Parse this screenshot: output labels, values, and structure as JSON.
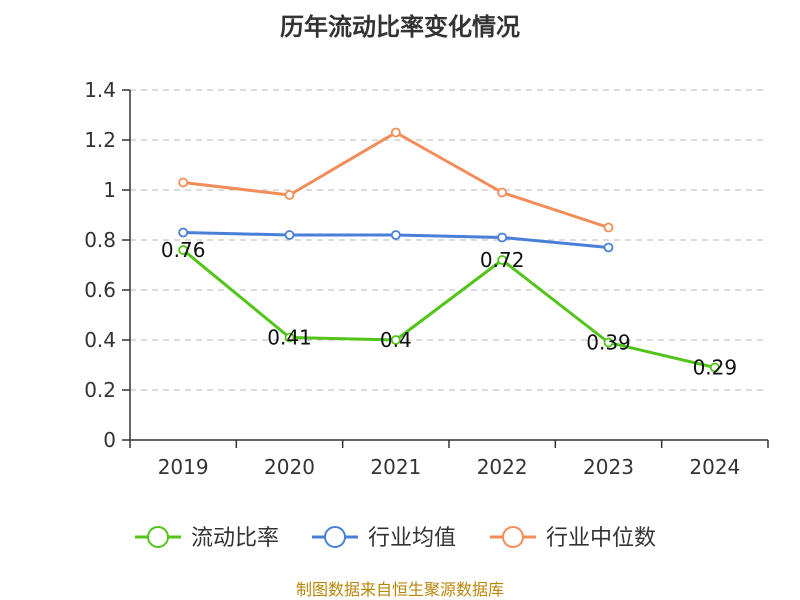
{
  "chart_data": {
    "type": "line",
    "title": "历年流动比率变化情况",
    "categories": [
      "2019",
      "2020",
      "2021",
      "2022",
      "2023",
      "2024"
    ],
    "ylim": [
      0,
      1.4
    ],
    "y_ticks": [
      0,
      0.2,
      0.4,
      0.6,
      0.8,
      1,
      1.2,
      1.4
    ],
    "y_tick_labels": [
      "0",
      "0.2",
      "0.4",
      "0.6",
      "0.8",
      "1",
      "1.2",
      "1.4"
    ],
    "grid": true,
    "legend_position": "bottom",
    "series": [
      {
        "name": "流动比率",
        "color": "#52c41a",
        "values": [
          0.76,
          0.41,
          0.4,
          0.72,
          0.39,
          0.29
        ],
        "data_labels": [
          "0.76",
          "0.41",
          "0.4",
          "0.72",
          "0.39",
          "0.29"
        ]
      },
      {
        "name": "行业均值",
        "color": "#4a7fd8",
        "values": [
          0.83,
          0.82,
          0.82,
          0.81,
          0.77,
          null
        ]
      },
      {
        "name": "行业中位数",
        "color": "#f28c58",
        "values": [
          1.03,
          0.98,
          1.23,
          0.99,
          0.85,
          null
        ]
      }
    ]
  },
  "source_text": "制图数据来自恒生聚源数据库",
  "source_color": "#b8860b"
}
